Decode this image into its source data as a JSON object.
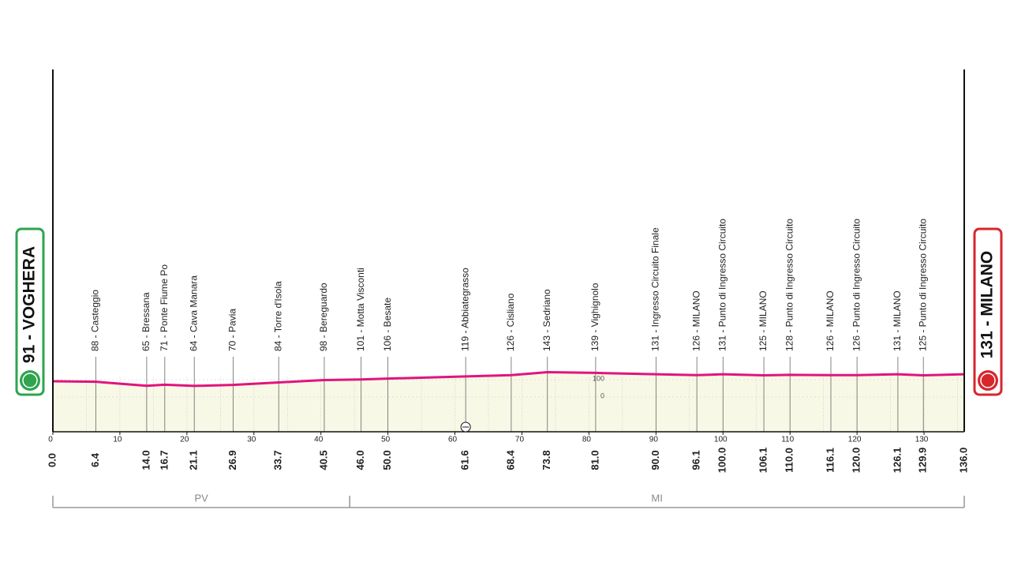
{
  "chart_data": {
    "type": "line",
    "x": [
      0,
      6.4,
      14,
      16.7,
      21.1,
      26.9,
      33.7,
      40.5,
      46,
      50,
      61.6,
      68.4,
      73.8,
      81,
      90,
      96.1,
      100,
      106.1,
      110,
      116.1,
      120,
      126.1,
      129.9,
      136
    ],
    "x_labels": [
      "0.0",
      "6.4",
      "14.0",
      "16.7",
      "21.1",
      "26.9",
      "33.7",
      "40.5",
      "46.0",
      "50.0",
      "61.6",
      "68.4",
      "73.8",
      "81.0",
      "90.0",
      "96.1",
      "100.0",
      "106.1",
      "110.0",
      "116.1",
      "120.0",
      "126.1",
      "129.9",
      "136.0"
    ],
    "point_labels": [
      "91 - VOGHERA",
      "88 - Casteggio",
      "65 - Bressana",
      "71 - Ponte Fiume Po",
      "64 - Cava Manara",
      "70 - Pavia",
      "84 - Torre d'Isola",
      "98 - Bereguardo",
      "101 - Motta Visconti",
      "106 - Besate",
      "119 - Abbiategrasso",
      "126 - Cisliano",
      "143 - Sedriano",
      "139 - Vighignolo",
      "131 - Ingresso Circuito Finale",
      "126 - MILANO",
      "131 - Punto di Ingresso Circuito",
      "125 - MILANO",
      "128 - Punto di Ingresso Circuito",
      "126 - MILANO",
      "126 - Punto di Ingresso Circuito",
      "131 - MILANO",
      "125 - Punto di Ingresso Circuito",
      "131 - MILANO"
    ],
    "series": [
      {
        "color": "#e0147d",
        "values": [
          91,
          88,
          65,
          71,
          64,
          70,
          84,
          98,
          101,
          106,
          119,
          126,
          143,
          139,
          131,
          126,
          131,
          125,
          128,
          126,
          126,
          131,
          125,
          131
        ]
      }
    ],
    "xlim": [
      0,
      136
    ],
    "xticks": [
      0,
      10,
      20,
      30,
      40,
      50,
      60,
      70,
      80,
      90,
      100,
      110,
      120,
      130
    ],
    "ylim": [
      -200,
      1900
    ],
    "yticks": [
      0,
      100
    ],
    "regions": [
      {
        "label": "PV",
        "from": 0,
        "to": 44.3
      },
      {
        "label": "MI",
        "from": 44.3,
        "to": 136
      }
    ]
  }
}
